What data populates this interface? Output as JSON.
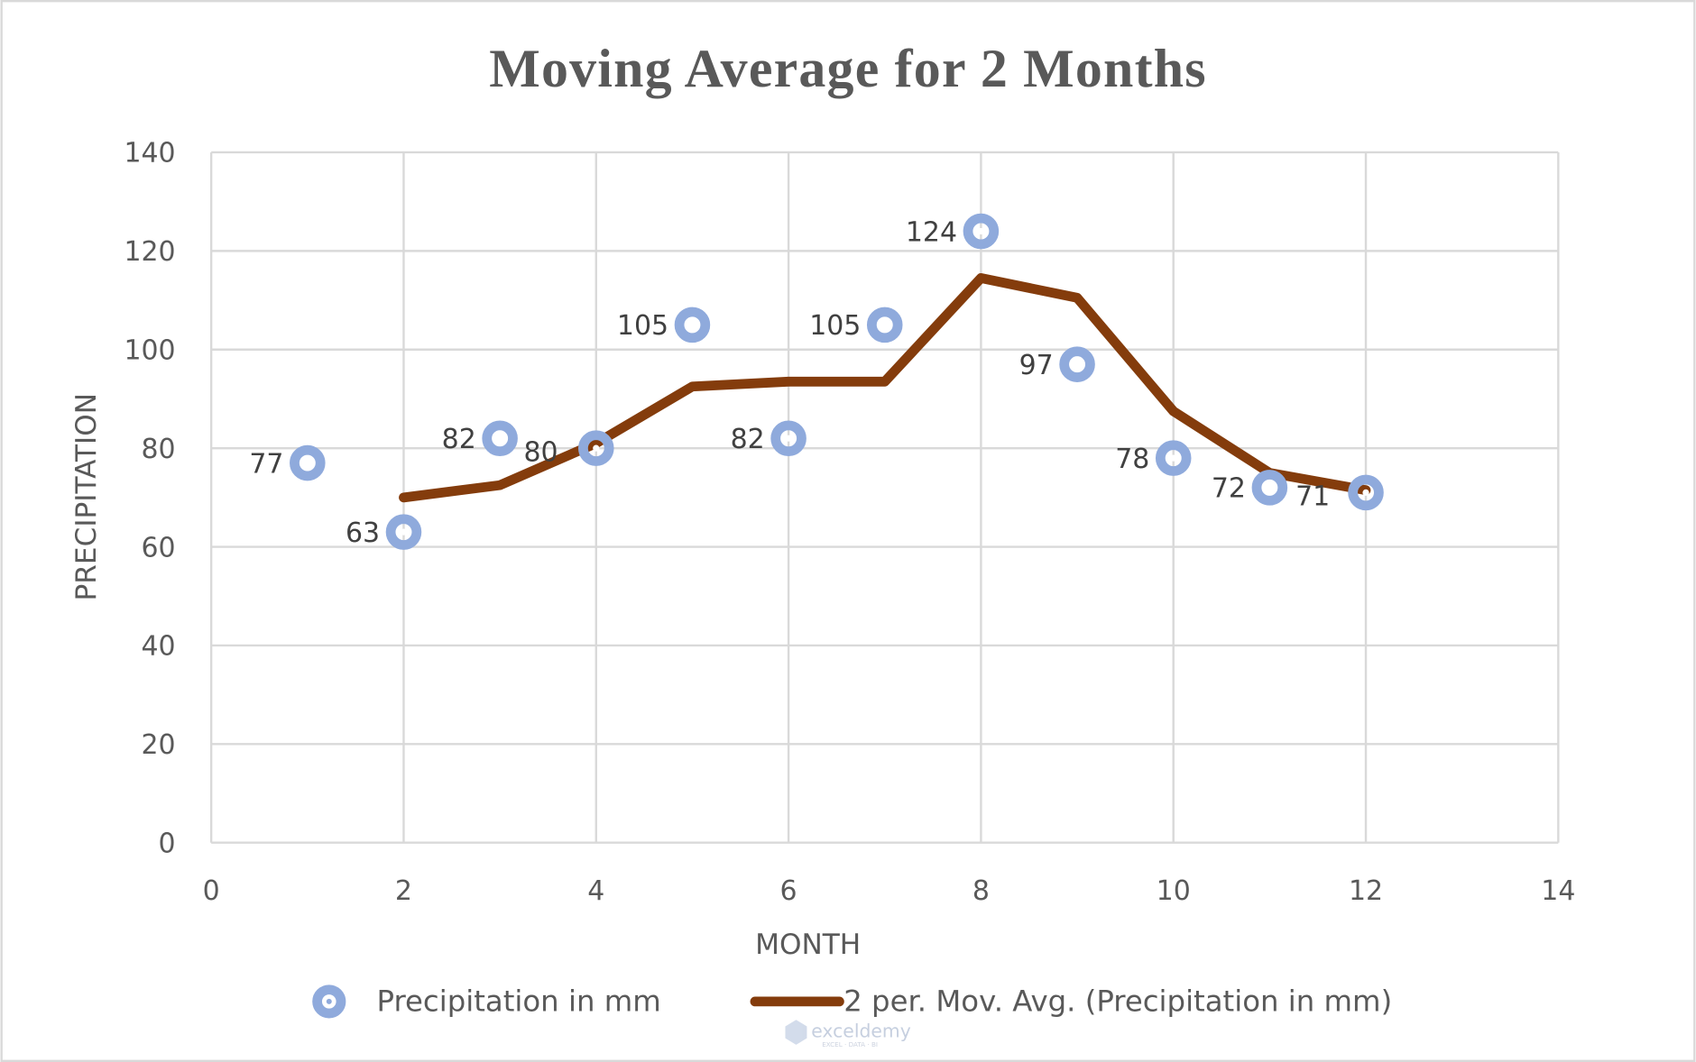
{
  "chart_data": {
    "type": "scatter",
    "title": "Moving Average for 2 Months",
    "xlabel": "MONTH",
    "ylabel": "PRECIPITATION",
    "xlim": [
      0,
      14
    ],
    "ylim": [
      0,
      140
    ],
    "x_ticks": [
      "0",
      "2",
      "4",
      "6",
      "8",
      "10",
      "12",
      "14"
    ],
    "y_ticks": [
      "0",
      "20",
      "40",
      "60",
      "80",
      "100",
      "120",
      "140"
    ],
    "grid": true,
    "legend_position": "bottom",
    "series": [
      {
        "name": "Precipitation in mm",
        "type": "scatter",
        "color": "#8faadc",
        "x": [
          1,
          2,
          3,
          4,
          5,
          6,
          7,
          8,
          9,
          10,
          11,
          12
        ],
        "y": [
          77,
          63,
          82,
          80,
          105,
          82,
          105,
          124,
          97,
          78,
          72,
          71
        ],
        "data_labels": [
          "77",
          "63",
          "82",
          "80",
          "105",
          "82",
          "105",
          "124",
          "97",
          "78",
          "72",
          "71"
        ]
      },
      {
        "name": "2 per. Mov. Avg. (Precipitation in mm)",
        "type": "line",
        "color": "#843c0c",
        "x": [
          2,
          3,
          4,
          5,
          6,
          7,
          8,
          9,
          10,
          11,
          12
        ],
        "y": [
          70,
          72.5,
          81,
          92.5,
          93.5,
          93.5,
          114.5,
          110.5,
          87.5,
          75,
          71.5
        ]
      }
    ]
  },
  "watermark": {
    "text": "exceldemy",
    "subtext": "EXCEL · DATA · BI"
  }
}
